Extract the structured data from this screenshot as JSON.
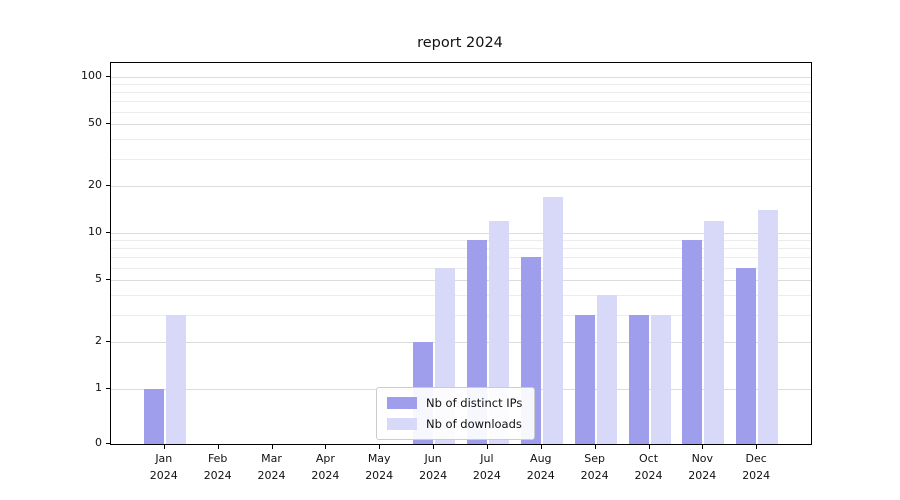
{
  "chart_data": {
    "type": "bar",
    "title": "report 2024",
    "categories": [
      "Jan 2024",
      "Feb 2024",
      "Mar 2024",
      "Apr 2024",
      "May 2024",
      "Jun 2024",
      "Jul 2024",
      "Aug 2024",
      "Sep 2024",
      "Oct 2024",
      "Nov 2024",
      "Dec 2024"
    ],
    "series": [
      {
        "name": "Nb of distinct IPs",
        "color": "#9e9eec",
        "values": [
          1,
          0,
          0,
          0,
          0,
          2,
          9,
          7,
          3,
          3,
          9,
          6
        ]
      },
      {
        "name": "Nb of downloads",
        "color": "#d8d8f8",
        "values": [
          3,
          0,
          0,
          0,
          0,
          6,
          12,
          17,
          4,
          3,
          12,
          14
        ]
      }
    ],
    "yscale": "symlog",
    "ylim": [
      0,
      100
    ],
    "yticks": [
      0,
      1,
      2,
      5,
      10,
      20,
      50,
      100
    ],
    "minor_yticks": [
      3,
      4,
      6,
      7,
      8,
      9,
      30,
      40,
      60,
      70,
      80,
      90
    ],
    "xlabel": "",
    "ylabel": "",
    "grid": "horizontal",
    "legend_position": "lower center",
    "colors": {
      "grid_major": "#dcdcdc",
      "grid_minor": "#ececec",
      "axis": "#000000",
      "background": "#ffffff"
    }
  }
}
